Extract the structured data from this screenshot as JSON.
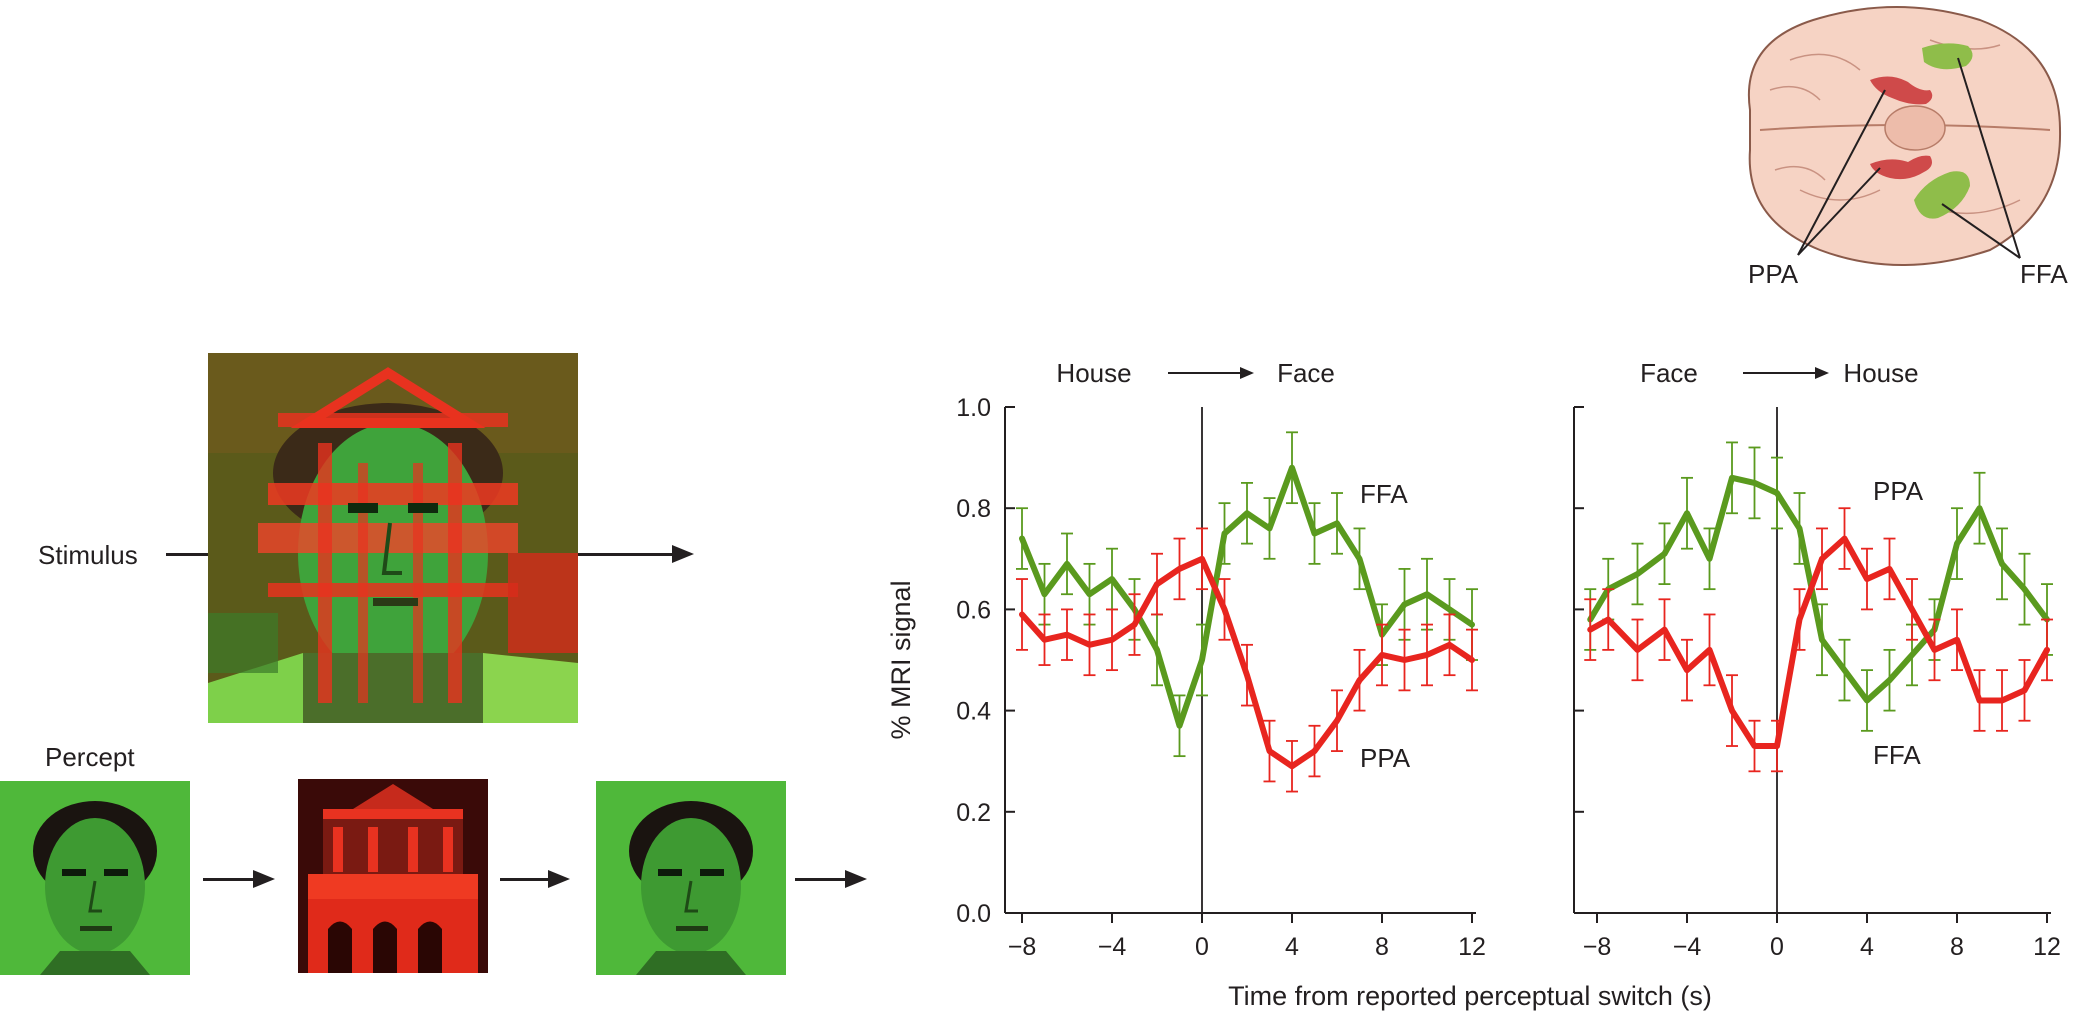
{
  "stimulus_panel": {
    "stimulus_label": "Stimulus",
    "percept_label": "Percept",
    "percept_sequence": [
      "face",
      "house",
      "face"
    ]
  },
  "brain_inset": {
    "labels": {
      "ppa": "PPA",
      "ffa": "FFA"
    },
    "colors": {
      "ppa": "#cf4a4a",
      "ffa": "#8fbd4a"
    }
  },
  "chart_data": [
    {
      "type": "line",
      "transition": {
        "from": "House",
        "to": "Face"
      },
      "ylabel": "% MRI signal",
      "xlabel": "Time from reported perceptual switch (s)",
      "xlim": [
        -9,
        12
      ],
      "ylim": [
        0,
        1.0
      ],
      "xticks": [
        -8,
        -4,
        0,
        4,
        8,
        12
      ],
      "yticks": [
        0.0,
        0.2,
        0.4,
        0.6,
        0.8,
        1.0
      ],
      "ytick_labels": [
        "0.0",
        "0.2",
        "0.4",
        "0.6",
        "0.8",
        "1.0"
      ],
      "xtick_labels": [
        "−8",
        "−4",
        "0",
        "4",
        "8",
        "12"
      ],
      "vline": 0,
      "series": [
        {
          "name": "FFA",
          "color": "#5a9a1e",
          "x": [
            -8,
            -7,
            -6,
            -5,
            -4,
            -3,
            -2,
            -1,
            0,
            1,
            2,
            3,
            4,
            5,
            6,
            7,
            8,
            9,
            10,
            11,
            12
          ],
          "y": [
            0.74,
            0.63,
            0.69,
            0.63,
            0.66,
            0.6,
            0.52,
            0.37,
            0.5,
            0.75,
            0.79,
            0.76,
            0.88,
            0.75,
            0.77,
            0.7,
            0.55,
            0.61,
            0.63,
            0.6,
            0.57
          ],
          "err": [
            0.06,
            0.06,
            0.06,
            0.06,
            0.06,
            0.06,
            0.07,
            0.06,
            0.07,
            0.06,
            0.06,
            0.06,
            0.07,
            0.06,
            0.06,
            0.06,
            0.06,
            0.07,
            0.07,
            0.06,
            0.07
          ]
        },
        {
          "name": "PPA",
          "color": "#e8251f",
          "x": [
            -8,
            -7,
            -6,
            -5,
            -4,
            -3,
            -2,
            -1,
            0,
            1,
            2,
            3,
            4,
            5,
            6,
            7,
            8,
            9,
            10,
            11,
            12
          ],
          "y": [
            0.59,
            0.54,
            0.55,
            0.53,
            0.54,
            0.57,
            0.65,
            0.68,
            0.7,
            0.6,
            0.47,
            0.32,
            0.29,
            0.32,
            0.38,
            0.46,
            0.51,
            0.5,
            0.51,
            0.53,
            0.5
          ],
          "err": [
            0.07,
            0.05,
            0.05,
            0.06,
            0.06,
            0.06,
            0.06,
            0.06,
            0.06,
            0.06,
            0.06,
            0.06,
            0.05,
            0.05,
            0.06,
            0.06,
            0.06,
            0.06,
            0.06,
            0.06,
            0.06
          ]
        }
      ]
    },
    {
      "type": "line",
      "transition": {
        "from": "Face",
        "to": "House"
      },
      "xlabel": "Time from reported perceptual switch (s)",
      "xlim": [
        -9,
        12
      ],
      "ylim": [
        0,
        1.0
      ],
      "xticks": [
        -8,
        -4,
        0,
        4,
        8,
        12
      ],
      "yticks": [
        0.0,
        0.2,
        0.4,
        0.6,
        0.8,
        1.0
      ],
      "xtick_labels": [
        "−8",
        "−4",
        "0",
        "4",
        "8",
        "12"
      ],
      "vline": 0,
      "series": [
        {
          "name": "FFA",
          "color": "#5a9a1e",
          "x": [
            -8.3,
            -7.5,
            -6.2,
            -5,
            -4,
            -3,
            -2,
            -1,
            0,
            1,
            2,
            3,
            4,
            5,
            6,
            7,
            8,
            9,
            10,
            11,
            12
          ],
          "y": [
            0.58,
            0.64,
            0.67,
            0.71,
            0.79,
            0.7,
            0.86,
            0.85,
            0.83,
            0.76,
            0.54,
            0.48,
            0.42,
            0.46,
            0.51,
            0.56,
            0.73,
            0.8,
            0.69,
            0.64,
            0.58
          ],
          "err": [
            0.06,
            0.06,
            0.06,
            0.06,
            0.07,
            0.06,
            0.07,
            0.07,
            0.07,
            0.07,
            0.07,
            0.06,
            0.06,
            0.06,
            0.06,
            0.06,
            0.07,
            0.07,
            0.07,
            0.07,
            0.07
          ]
        },
        {
          "name": "PPA",
          "color": "#e8251f",
          "x": [
            -8.3,
            -7.5,
            -6.2,
            -5,
            -4,
            -3,
            -2,
            -1,
            0,
            1,
            2,
            3,
            4,
            5,
            6,
            7,
            8,
            9,
            10,
            11,
            12
          ],
          "y": [
            0.56,
            0.58,
            0.52,
            0.56,
            0.48,
            0.52,
            0.4,
            0.33,
            0.33,
            0.58,
            0.7,
            0.74,
            0.66,
            0.68,
            0.6,
            0.52,
            0.54,
            0.42,
            0.42,
            0.44,
            0.52
          ],
          "err": [
            0.06,
            0.06,
            0.06,
            0.06,
            0.06,
            0.07,
            0.07,
            0.05,
            0.05,
            0.06,
            0.06,
            0.06,
            0.06,
            0.06,
            0.06,
            0.06,
            0.06,
            0.06,
            0.06,
            0.06,
            0.06
          ]
        }
      ]
    }
  ]
}
